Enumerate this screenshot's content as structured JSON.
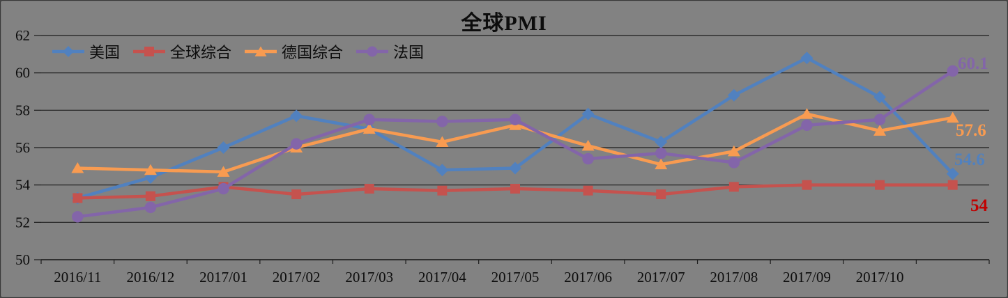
{
  "chart_data": {
    "type": "line",
    "title": "全球PMI",
    "x_labels": [
      "2016/11",
      "2016/12",
      "2017/01",
      "2017/02",
      "2017/03",
      "2017/04",
      "2017/05",
      "2017/06",
      "2017/07",
      "2017/08",
      "2017/09",
      "2017/10",
      ""
    ],
    "ylim": [
      50,
      62
    ],
    "yticks": [
      62,
      60,
      58,
      56,
      54,
      52,
      50
    ],
    "grid": true,
    "legend_position": "top-left",
    "background": "#828282",
    "gridline_color": "#1c1c1c",
    "series": [
      {
        "name": "美国",
        "color": "#5181BF",
        "marker": "diamond",
        "values": [
          53.3,
          54.4,
          56.0,
          57.7,
          57.0,
          54.8,
          54.9,
          57.8,
          56.3,
          58.8,
          60.8,
          58.7,
          54.6
        ],
        "end_label": "54.6",
        "end_label_color": "#5181BF"
      },
      {
        "name": "全球综合",
        "color": "#C5524E",
        "marker": "square",
        "values": [
          53.3,
          53.4,
          53.9,
          53.5,
          53.8,
          53.7,
          53.8,
          53.7,
          53.5,
          53.9,
          54.0,
          54.0,
          54.0
        ],
        "end_label": "54",
        "end_label_color": "#C00000"
      },
      {
        "name": "德国综合",
        "color": "#F89B51",
        "marker": "triangle",
        "values": [
          54.9,
          54.8,
          54.7,
          56.0,
          57.0,
          56.3,
          57.2,
          56.1,
          55.1,
          55.8,
          57.8,
          56.9,
          57.6
        ],
        "end_label": "57.6",
        "end_label_color": "#F89B51"
      },
      {
        "name": "法国",
        "color": "#8365A9",
        "marker": "circle",
        "values": [
          52.3,
          52.8,
          53.8,
          56.2,
          57.5,
          57.4,
          57.5,
          55.4,
          55.7,
          55.2,
          57.2,
          57.5,
          60.1
        ],
        "end_label": "60.1",
        "end_label_color": "#8365A9"
      }
    ]
  }
}
